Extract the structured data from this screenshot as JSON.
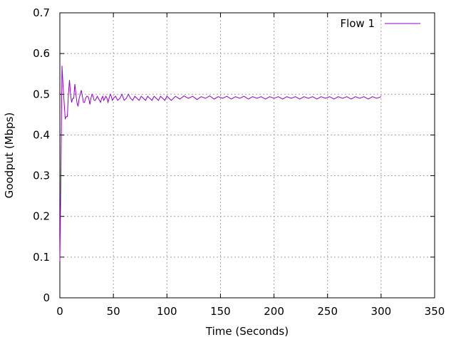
{
  "chart_data": {
    "type": "line",
    "title": "",
    "xlabel": "Time (Seconds)",
    "ylabel": "Goodput (Mbps)",
    "xlim": [
      0,
      350
    ],
    "ylim": [
      0,
      0.7
    ],
    "x_ticks": [
      "0",
      "50",
      "100",
      "150",
      "200",
      "250",
      "300",
      "350"
    ],
    "y_ticks": [
      "0",
      "0.1",
      "0.2",
      "0.3",
      "0.4",
      "0.5",
      "0.6",
      "0.7"
    ],
    "grid": true,
    "legend_position": "top-right",
    "series": [
      {
        "name": "Flow 1",
        "color": "#9400d3",
        "x": [
          0,
          1,
          2,
          3,
          4,
          5,
          6,
          7,
          8,
          9,
          10,
          11,
          12,
          13,
          14,
          15,
          16,
          17,
          18,
          19,
          20,
          21,
          22,
          23,
          24,
          25,
          26,
          27,
          28,
          29,
          30,
          31,
          32,
          33,
          34,
          35,
          36,
          37,
          38,
          39,
          40,
          41,
          42,
          43,
          44,
          45,
          46,
          47,
          48,
          49,
          50,
          52,
          54,
          56,
          58,
          60,
          62,
          64,
          66,
          68,
          70,
          72,
          74,
          76,
          78,
          80,
          82,
          84,
          86,
          88,
          90,
          92,
          94,
          96,
          98,
          100,
          104,
          108,
          112,
          116,
          120,
          124,
          128,
          132,
          136,
          140,
          144,
          148,
          152,
          156,
          160,
          164,
          168,
          172,
          176,
          180,
          184,
          188,
          192,
          196,
          200,
          204,
          208,
          212,
          216,
          220,
          224,
          228,
          232,
          236,
          240,
          244,
          248,
          252,
          256,
          260,
          264,
          268,
          272,
          276,
          280,
          284,
          288,
          292,
          296,
          300
        ],
        "y": [
          0.09,
          0.3,
          0.57,
          0.52,
          0.48,
          0.44,
          0.445,
          0.445,
          0.5,
          0.535,
          0.5,
          0.48,
          0.49,
          0.49,
          0.525,
          0.5,
          0.48,
          0.47,
          0.49,
          0.5,
          0.51,
          0.495,
          0.48,
          0.48,
          0.49,
          0.495,
          0.495,
          0.49,
          0.475,
          0.49,
          0.5,
          0.495,
          0.485,
          0.485,
          0.49,
          0.495,
          0.49,
          0.485,
          0.48,
          0.49,
          0.495,
          0.485,
          0.49,
          0.495,
          0.49,
          0.48,
          0.49,
          0.5,
          0.495,
          0.485,
          0.49,
          0.495,
          0.485,
          0.49,
          0.5,
          0.485,
          0.49,
          0.5,
          0.49,
          0.485,
          0.495,
          0.49,
          0.485,
          0.495,
          0.49,
          0.485,
          0.495,
          0.49,
          0.485,
          0.495,
          0.49,
          0.485,
          0.495,
          0.49,
          0.485,
          0.495,
          0.485,
          0.495,
          0.488,
          0.496,
          0.49,
          0.495,
          0.487,
          0.494,
          0.49,
          0.496,
          0.488,
          0.494,
          0.49,
          0.495,
          0.488,
          0.494,
          0.49,
          0.495,
          0.488,
          0.494,
          0.49,
          0.494,
          0.488,
          0.494,
          0.49,
          0.494,
          0.488,
          0.494,
          0.49,
          0.494,
          0.488,
          0.494,
          0.49,
          0.494,
          0.488,
          0.494,
          0.49,
          0.494,
          0.488,
          0.494,
          0.49,
          0.494,
          0.488,
          0.494,
          0.49,
          0.494,
          0.488,
          0.494,
          0.49,
          0.494
        ]
      }
    ]
  }
}
